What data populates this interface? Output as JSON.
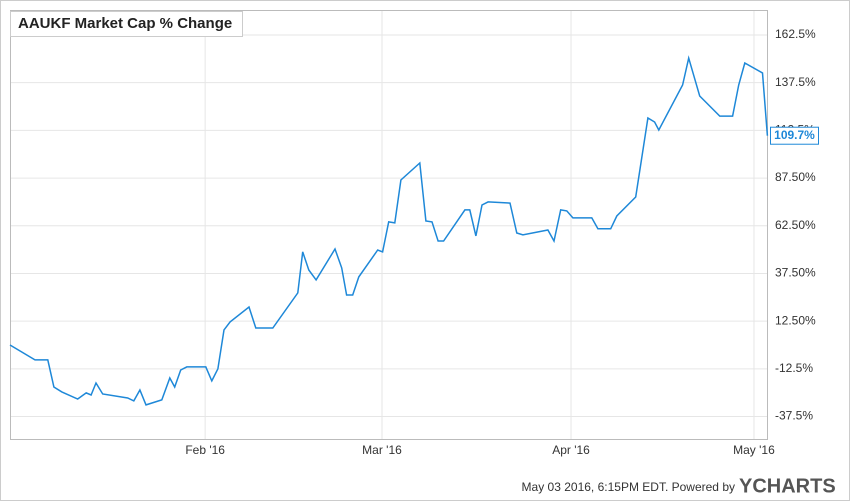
{
  "chart_data": {
    "type": "line",
    "title": "AAUKF Market Cap % Change",
    "color": "#1e88d8",
    "grid": true,
    "x": [
      0,
      4.1,
      6.2,
      7.2,
      8.5,
      11.1,
      12.5,
      13.3,
      14.1,
      15.2,
      19.3,
      20.3,
      21.3,
      22.3,
      24.9,
      26.2,
      27,
      28,
      29,
      32.1,
      33.1,
      34.1,
      35.1,
      36.1,
      39.2,
      40.3,
      43.1,
      47.2,
      48,
      49,
      50.2,
      53.3,
      54.4,
      55.2,
      56.2,
      57.2,
      60.3,
      61.1,
      62.1,
      63.1,
      64.1,
      67.2,
      68.2,
      69.2,
      70.2,
      71.1,
      74.6,
      75.4,
      76.4,
      77.4,
      78.4,
      82,
      83.1,
      84.1,
      88.2,
      89.2,
      90.3,
      91.3,
      92.3,
      95.4,
      96.4,
      98.5,
      99.5,
      102.6,
      104.6,
      105.7,
      106.4,
      110.3,
      111.3,
      113.1,
      116.4,
      118.5,
      119.5,
      120.5,
      123.4,
      124.2
    ],
    "values": [
      0,
      -7.8,
      -7.8,
      -22,
      -24.6,
      -28.3,
      -25.1,
      -26.2,
      -19.9,
      -25.7,
      -27.8,
      -29.3,
      -23.6,
      -31.4,
      -28.8,
      -17.3,
      -22,
      -13.1,
      -11.5,
      -11.5,
      -18.8,
      -12.5,
      7.9,
      12.1,
      19.9,
      8.9,
      8.9,
      27.3,
      48.8,
      39.3,
      34.1,
      50.3,
      40.4,
      26.2,
      26.2,
      35.7,
      49.8,
      48.8,
      64.5,
      64,
      86.5,
      95.4,
      65,
      64.5,
      54.5,
      54.5,
      70.8,
      70.8,
      57.2,
      73.4,
      75,
      74.4,
      58.7,
      57.7,
      60.3,
      54.5,
      70.8,
      70.3,
      66.6,
      66.6,
      60.9,
      60.9,
      67.6,
      77.6,
      119,
      116.9,
      112.7,
      136.3,
      150.4,
      130.5,
      120,
      120,
      136.3,
      147.8,
      142.6,
      109.7
    ],
    "last_value_label": "109.7%",
    "xlim": [
      0,
      124.3
    ],
    "xticks": [
      {
        "value": 32,
        "label": "Feb '16"
      },
      {
        "value": 61,
        "label": "Mar '16"
      },
      {
        "value": 92,
        "label": "Apr '16"
      },
      {
        "value": 122,
        "label": "May '16"
      }
    ],
    "ylim": [
      -49.8,
      175.6
    ],
    "yticks": [
      {
        "value": 162.5,
        "label": "162.5%"
      },
      {
        "value": 137.5,
        "label": "137.5%"
      },
      {
        "value": 112.5,
        "label": "112.5%"
      },
      {
        "value": 87.5,
        "label": "87.50%"
      },
      {
        "value": 62.5,
        "label": "62.50%"
      },
      {
        "value": 37.5,
        "label": "37.50%"
      },
      {
        "value": 12.5,
        "label": "12.50%"
      },
      {
        "value": -12.5,
        "label": "-12.5%"
      },
      {
        "value": -37.5,
        "label": "-37.5%"
      }
    ],
    "footer": "May 03 2016, 6:15PM EDT.  Powered by",
    "brand": "YCHARTS"
  }
}
